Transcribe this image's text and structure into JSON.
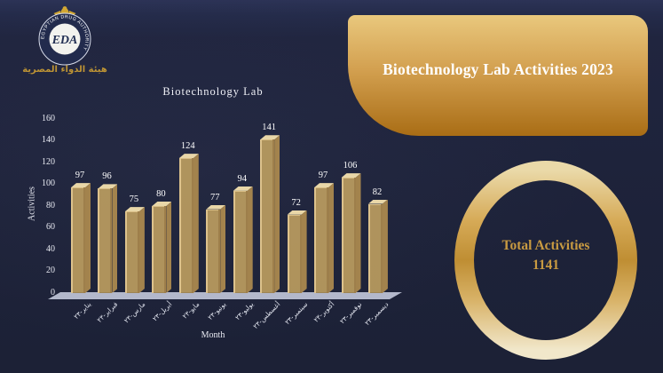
{
  "logo": {
    "acronym": "EDA",
    "ring_text": "EGYPTIAN DRUG AUTHORITY",
    "arabic_name": "هيئة الدواء المصرية"
  },
  "banner": {
    "title": "Biotechnology Lab Activities 2023"
  },
  "total_badge": {
    "label": "Total Activities",
    "value": "1141"
  },
  "chart_data": {
    "type": "bar",
    "title": "Biotechnology Lab",
    "xlabel": "Month",
    "ylabel": "Activities",
    "categories": [
      "يناير-٢٣",
      "فبراير-٢٣",
      "مارس-٢٣",
      "أبريل-٢٣",
      "مايو-٢٣",
      "يونيو-٢٣",
      "يوليو-٢٣",
      "أغسطس-٢٣",
      "سبتمبر-٢٣",
      "أكتوبر-٢٣",
      "نوفمبر-٢٣",
      "ديسمبر-٢٣"
    ],
    "values": [
      97,
      96,
      75,
      80,
      124,
      77,
      94,
      141,
      72,
      97,
      106,
      82
    ],
    "ylim": [
      0,
      160
    ],
    "ytick_step": 20,
    "grid": false,
    "legend": false,
    "bar_color": "#c9a764",
    "data_label_color": "#ffffff"
  },
  "colors": {
    "background": "#1e2239",
    "banner_gold_light": "#e9c87d",
    "banner_gold_dark": "#a96d15",
    "ring_gold": "#c9983f",
    "total_text_gold": "#c89a41",
    "floor_gray": "#bcc1d3"
  }
}
